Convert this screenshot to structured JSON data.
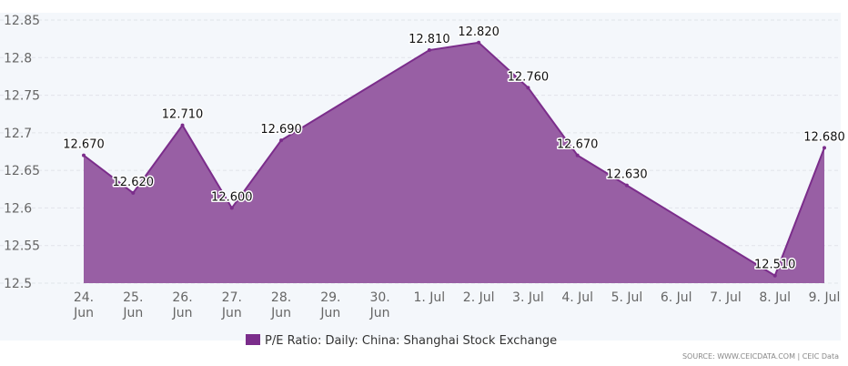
{
  "chart_data": {
    "type": "area",
    "categories": [
      [
        "24.",
        "Jun"
      ],
      [
        "25.",
        "Jun"
      ],
      [
        "26.",
        "Jun"
      ],
      [
        "27.",
        "Jun"
      ],
      [
        "28.",
        "Jun"
      ],
      [
        "29.",
        "Jun"
      ],
      [
        "30.",
        "Jun"
      ],
      [
        "1. Jul"
      ],
      [
        "2. Jul"
      ],
      [
        "3. Jul"
      ],
      [
        "4. Jul"
      ],
      [
        "5. Jul"
      ],
      [
        "6. Jul"
      ],
      [
        "7. Jul"
      ],
      [
        "8. Jul"
      ],
      [
        "9. Jul"
      ]
    ],
    "series": [
      {
        "name": "P/E Ratio: Daily: China: Shanghai Stock Exchange",
        "color": "#7b2d8b",
        "points": [
          {
            "x": 0,
            "y": 12.67,
            "label": "12.670"
          },
          {
            "x": 1,
            "y": 12.62,
            "label": "12.620"
          },
          {
            "x": 2,
            "y": 12.71,
            "label": "12.710"
          },
          {
            "x": 3,
            "y": 12.6,
            "label": "12.600"
          },
          {
            "x": 4,
            "y": 12.69,
            "label": "12.690"
          },
          {
            "x": 7,
            "y": 12.81,
            "label": "12.810"
          },
          {
            "x": 8,
            "y": 12.82,
            "label": "12.820"
          },
          {
            "x": 9,
            "y": 12.76,
            "label": "12.760"
          },
          {
            "x": 10,
            "y": 12.67,
            "label": "12.670"
          },
          {
            "x": 11,
            "y": 12.63,
            "label": "12.630"
          },
          {
            "x": 14,
            "y": 12.51,
            "label": "12.510"
          },
          {
            "x": 15,
            "y": 12.68,
            "label": "12.680"
          }
        ]
      }
    ],
    "yticks": [
      "12.5",
      "12.55",
      "12.6",
      "12.65",
      "12.7",
      "12.75",
      "12.8",
      "12.85"
    ],
    "ylim": [
      12.5,
      12.85
    ],
    "grid": true,
    "legend_position": "bottom-center",
    "source": "SOURCE: WWW.CEICDATA.COM | CEIC Data"
  }
}
